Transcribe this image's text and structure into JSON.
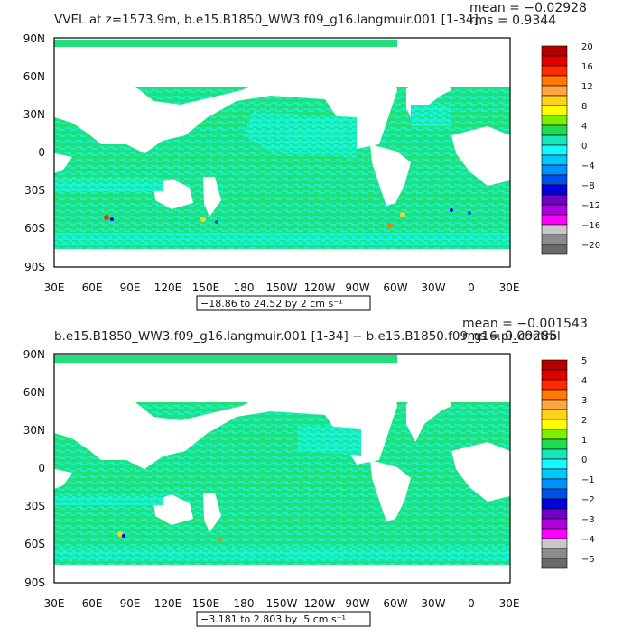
{
  "panels": [
    {
      "title": "VVEL at z=1573.9m, b.e15.B1850_WW3.f09_g16.langmuir.001 [1-34]",
      "mean": "mean = −0.02928",
      "rms": "rms = 0.9344",
      "range": "−18.86 to 24.52 by 2 cm s⁻¹",
      "colorbar_labels": [
        "20",
        "16",
        "12",
        "8",
        "4",
        "0",
        "−4",
        "−8",
        "−12",
        "−16",
        "−20"
      ]
    },
    {
      "title": "b.e15.B1850_WW3.f09_g16.langmuir.001 [1-34] − b.e15.B1850.f09_g16.pi_control",
      "mean": "mean = −0.001543",
      "rms": "rms = 0.09285",
      "range": "−3.181 to 2.803 by .5 cm s⁻¹",
      "colorbar_labels": [
        "5",
        "4",
        "3",
        "2",
        "1",
        "0",
        "−1",
        "−2",
        "−3",
        "−4",
        "−5"
      ]
    }
  ],
  "lat_labels": [
    "90N",
    "60N",
    "30N",
    "0",
    "30S",
    "60S",
    "90S"
  ],
  "lon_labels": [
    "30E",
    "60E",
    "90E",
    "120E",
    "150E",
    "180",
    "150W",
    "120W",
    "90W",
    "60W",
    "30W",
    "0",
    "30E"
  ],
  "colors": {
    "ocean_main": "#21e07a",
    "ocean_alt": "#16f4dc",
    "land": "#ffffff",
    "colorbar": [
      "#b00000",
      "#e00000",
      "#ff2a00",
      "#ff7a00",
      "#ffa640",
      "#ffd21a",
      "#ffff00",
      "#7cf000",
      "#20dc50",
      "#14e8b8",
      "#18f8ff",
      "#00c8ff",
      "#0090ff",
      "#0050e8",
      "#0000e0",
      "#7000c8",
      "#b000e0",
      "#ff00ff",
      "#c8c8c8",
      "#8c8c8c",
      "#6a6a6a"
    ]
  }
}
